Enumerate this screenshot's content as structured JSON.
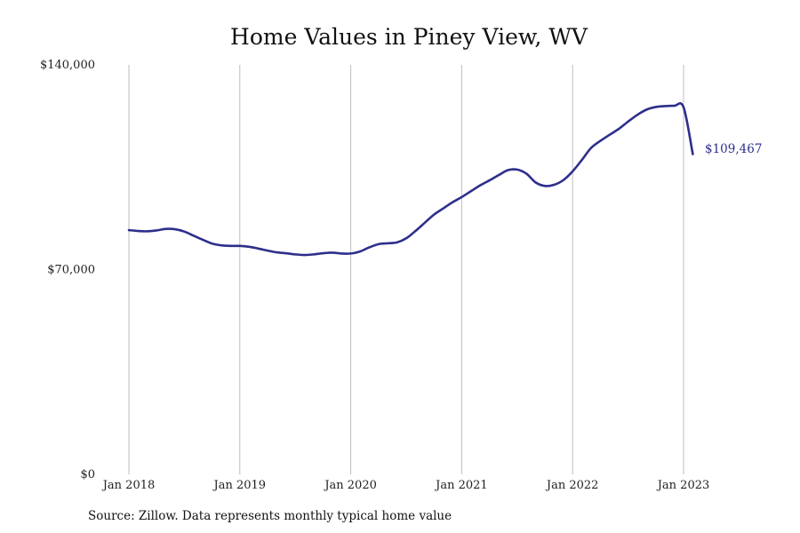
{
  "chart_data": {
    "type": "line",
    "title": "Home Values in Piney View, WV",
    "xlabel": "",
    "ylabel": "",
    "ylim": [
      0,
      140000
    ],
    "y_ticks": [
      {
        "value": 0,
        "label": "$0"
      },
      {
        "value": 70000,
        "label": "$70,000"
      },
      {
        "value": 140000,
        "label": "$140,000"
      }
    ],
    "x_ticks": [
      {
        "value": "2018-01",
        "label": "Jan 2018"
      },
      {
        "value": "2019-01",
        "label": "Jan 2019"
      },
      {
        "value": "2020-01",
        "label": "Jan 2020"
      },
      {
        "value": "2021-01",
        "label": "Jan 2021"
      },
      {
        "value": "2022-01",
        "label": "Jan 2022"
      },
      {
        "value": "2023-01",
        "label": "Jan 2023"
      }
    ],
    "grid": "vertical",
    "line_color": "#2e2e8c",
    "grid_color": "#bdbdbd",
    "end_label": "$109,467",
    "source": "Source: Zillow. Data represents monthly typical home value",
    "series": [
      {
        "x": [
          "2018-01",
          "2018-02",
          "2018-03",
          "2018-04",
          "2018-05",
          "2018-06",
          "2018-07",
          "2018-08",
          "2018-09",
          "2018-10",
          "2018-11",
          "2018-12",
          "2019-01",
          "2019-02",
          "2019-03",
          "2019-04",
          "2019-05",
          "2019-06",
          "2019-07",
          "2019-08",
          "2019-09",
          "2019-10",
          "2019-11",
          "2019-12",
          "2020-01",
          "2020-02",
          "2020-03",
          "2020-04",
          "2020-05",
          "2020-06",
          "2020-07",
          "2020-08",
          "2020-09",
          "2020-10",
          "2020-11",
          "2020-12",
          "2021-01",
          "2021-02",
          "2021-03",
          "2021-04",
          "2021-05",
          "2021-06",
          "2021-07",
          "2021-08",
          "2021-09",
          "2021-10",
          "2021-11",
          "2021-12",
          "2022-01",
          "2022-02",
          "2022-03",
          "2022-04",
          "2022-05",
          "2022-06",
          "2022-07",
          "2022-08",
          "2022-09",
          "2022-10",
          "2022-11",
          "2022-12",
          "2023-01",
          "2023-02"
        ],
        "values": [
          83500,
          83200,
          83100,
          83400,
          83900,
          83800,
          83000,
          81600,
          80200,
          78900,
          78300,
          78100,
          78100,
          77800,
          77200,
          76500,
          75900,
          75600,
          75200,
          75000,
          75200,
          75600,
          75800,
          75500,
          75500,
          76200,
          77600,
          78700,
          79000,
          79300,
          80700,
          83200,
          86000,
          88800,
          90900,
          93000,
          94800,
          96800,
          98800,
          100500,
          102300,
          104000,
          104200,
          102800,
          99800,
          98600,
          99000,
          100600,
          103600,
          107500,
          111600,
          114000,
          116100,
          118100,
          120600,
          122900,
          124700,
          125600,
          125900,
          126000,
          125500,
          109467
        ]
      }
    ]
  }
}
